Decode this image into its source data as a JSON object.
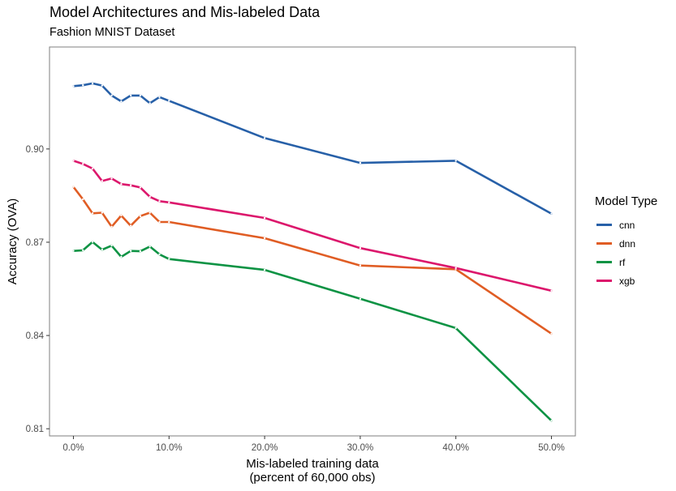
{
  "chart_data": {
    "type": "line",
    "title": "Model Architectures and Mis-labeled Data",
    "subtitle": "Fashion MNIST Dataset",
    "xlabel": [
      "Mis-labeled training data",
      "(percent of 60,000 obs)"
    ],
    "ylabel": "Accuracy (OVA)",
    "xlim": [
      -0.025,
      0.525
    ],
    "ylim": [
      0.8077,
      0.9328
    ],
    "x_ticks": [
      0.0,
      0.1,
      0.2,
      0.3,
      0.4,
      0.5
    ],
    "x_tick_labels": [
      "0.0%",
      "10.0%",
      "20.0%",
      "30.0%",
      "40.0%",
      "50.0%"
    ],
    "y_ticks": [
      0.81,
      0.84,
      0.87,
      0.9
    ],
    "y_tick_labels": [
      "0.81",
      "0.84",
      "0.87",
      "0.90"
    ],
    "grid": false,
    "legend": {
      "title": "Model Type",
      "position": "right"
    },
    "x": [
      0.0,
      0.01,
      0.02,
      0.03,
      0.04,
      0.05,
      0.06,
      0.07,
      0.08,
      0.09,
      0.1,
      0.2,
      0.3,
      0.4,
      0.5
    ],
    "series": [
      {
        "name": "cnn",
        "color": "#2760a8",
        "values": [
          0.9202,
          0.9205,
          0.9211,
          0.9204,
          0.9172,
          0.9153,
          0.9172,
          0.9172,
          0.9147,
          0.9167,
          0.9155,
          0.9035,
          0.8955,
          0.8962,
          0.8792
        ]
      },
      {
        "name": "dnn",
        "color": "#e05d24",
        "values": [
          0.8878,
          0.8838,
          0.8793,
          0.8795,
          0.875,
          0.8786,
          0.8753,
          0.8784,
          0.8795,
          0.8765,
          0.8765,
          0.8713,
          0.8625,
          0.8613,
          0.8406
        ]
      },
      {
        "name": "rf",
        "color": "#0d9344",
        "values": [
          0.8672,
          0.8674,
          0.8701,
          0.8676,
          0.8689,
          0.8653,
          0.8672,
          0.8671,
          0.8686,
          0.8661,
          0.8646,
          0.8611,
          0.8518,
          0.8424,
          0.8126
        ]
      },
      {
        "name": "xgb",
        "color": "#dc176c",
        "values": [
          0.8962,
          0.8952,
          0.8937,
          0.8897,
          0.8905,
          0.8887,
          0.8883,
          0.8876,
          0.8846,
          0.8832,
          0.8828,
          0.8778,
          0.8681,
          0.8617,
          0.8544
        ]
      }
    ]
  }
}
